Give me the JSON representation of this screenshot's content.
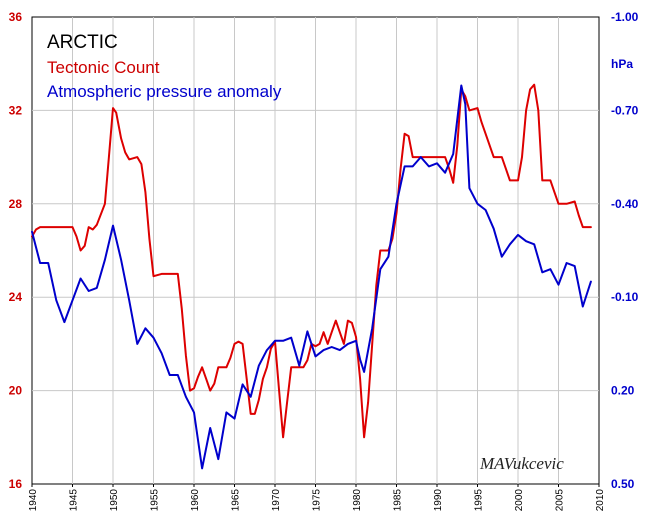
{
  "chart_data": {
    "type": "line",
    "title": "ARCTIC",
    "watermark": "MAVukcevic",
    "x_range": [
      1940,
      2010
    ],
    "x_ticks": [
      1940,
      1945,
      1950,
      1955,
      1960,
      1965,
      1970,
      1975,
      1980,
      1985,
      1990,
      1995,
      2000,
      2005,
      2010
    ],
    "y_left": {
      "range": [
        16,
        36
      ],
      "ticks": [
        "16",
        "20",
        "24",
        "28",
        "32",
        "36"
      ],
      "color": "#cc0000"
    },
    "y_right": {
      "unit": "hPa",
      "range_top": -1.0,
      "range_bottom": 0.5,
      "inverted": true,
      "ticks": [
        "-1.00",
        "-0.70",
        "-0.40",
        "-0.10",
        "0.20",
        "0.50"
      ],
      "color": "#0000cc"
    },
    "grid": true,
    "series": [
      {
        "name": "Tectonic Count",
        "axis": "left",
        "color": "#dd0000",
        "points": [
          [
            1940,
            26.6
          ],
          [
            1940.5,
            26.9
          ],
          [
            1941,
            27.0
          ],
          [
            1942,
            27.0
          ],
          [
            1943,
            27.0
          ],
          [
            1944,
            27.0
          ],
          [
            1945,
            27.0
          ],
          [
            1945.5,
            26.6
          ],
          [
            1946,
            26.0
          ],
          [
            1946.5,
            26.2
          ],
          [
            1947,
            27.0
          ],
          [
            1947.5,
            26.9
          ],
          [
            1948,
            27.1
          ],
          [
            1949,
            28.0
          ],
          [
            1949.5,
            30.0
          ],
          [
            1950,
            32.1
          ],
          [
            1950.4,
            31.9
          ],
          [
            1951,
            30.8
          ],
          [
            1951.5,
            30.2
          ],
          [
            1952,
            29.9
          ],
          [
            1953,
            30.0
          ],
          [
            1953.5,
            29.7
          ],
          [
            1954,
            28.5
          ],
          [
            1954.5,
            26.5
          ],
          [
            1955,
            24.9
          ],
          [
            1956,
            25.0
          ],
          [
            1957,
            25.0
          ],
          [
            1958,
            25.0
          ],
          [
            1958.5,
            23.5
          ],
          [
            1959,
            21.5
          ],
          [
            1959.5,
            20.0
          ],
          [
            1960,
            20.1
          ],
          [
            1960.5,
            20.6
          ],
          [
            1961,
            21.0
          ],
          [
            1961.5,
            20.5
          ],
          [
            1962,
            20.0
          ],
          [
            1962.5,
            20.3
          ],
          [
            1963,
            21.0
          ],
          [
            1964,
            21.0
          ],
          [
            1964.5,
            21.4
          ],
          [
            1965,
            22.0
          ],
          [
            1965.5,
            22.1
          ],
          [
            1966,
            22.0
          ],
          [
            1966.5,
            20.5
          ],
          [
            1967,
            19.0
          ],
          [
            1967.5,
            19.0
          ],
          [
            1968,
            19.6
          ],
          [
            1968.5,
            20.5
          ],
          [
            1969,
            21.0
          ],
          [
            1969.5,
            21.8
          ],
          [
            1970,
            22.1
          ],
          [
            1970.5,
            20.0
          ],
          [
            1971,
            18.0
          ],
          [
            1971.5,
            19.5
          ],
          [
            1972,
            21.0
          ],
          [
            1973,
            21.0
          ],
          [
            1973.5,
            21.0
          ],
          [
            1974,
            21.3
          ],
          [
            1974.5,
            22.0
          ],
          [
            1975,
            21.9
          ],
          [
            1975.5,
            22.0
          ],
          [
            1976,
            22.5
          ],
          [
            1976.5,
            22.0
          ],
          [
            1977,
            22.5
          ],
          [
            1977.5,
            23.0
          ],
          [
            1978,
            22.5
          ],
          [
            1978.5,
            22.0
          ],
          [
            1979,
            23.0
          ],
          [
            1979.5,
            22.9
          ],
          [
            1980,
            22.3
          ],
          [
            1980.5,
            20.5
          ],
          [
            1981,
            18.0
          ],
          [
            1981.5,
            19.5
          ],
          [
            1982,
            22.0
          ],
          [
            1982.5,
            24.5
          ],
          [
            1983,
            26.0
          ],
          [
            1984,
            26.0
          ],
          [
            1984.5,
            26.5
          ],
          [
            1985,
            27.6
          ],
          [
            1985.5,
            29.5
          ],
          [
            1986,
            31.0
          ],
          [
            1986.5,
            30.9
          ],
          [
            1987,
            30.0
          ],
          [
            1988,
            30.0
          ],
          [
            1989,
            30.0
          ],
          [
            1990,
            30.0
          ],
          [
            1991,
            30.0
          ],
          [
            1991.5,
            29.5
          ],
          [
            1992,
            28.9
          ],
          [
            1992.5,
            30.5
          ],
          [
            1993,
            32.9
          ],
          [
            1993.5,
            32.6
          ],
          [
            1994,
            32.0
          ],
          [
            1995,
            32.1
          ],
          [
            1995.5,
            31.5
          ],
          [
            1996,
            31.0
          ],
          [
            1997,
            30.0
          ],
          [
            1998,
            30.0
          ],
          [
            1998.5,
            29.5
          ],
          [
            1999,
            29.0
          ],
          [
            2000,
            29.0
          ],
          [
            2000.5,
            30.0
          ],
          [
            2001,
            32.0
          ],
          [
            2001.5,
            32.9
          ],
          [
            2002,
            33.1
          ],
          [
            2002.5,
            32.0
          ],
          [
            2003,
            29.0
          ],
          [
            2004,
            29.0
          ],
          [
            2004.5,
            28.5
          ],
          [
            2005,
            28.0
          ],
          [
            2006,
            28.0
          ],
          [
            2007,
            28.1
          ],
          [
            2007.5,
            27.5
          ],
          [
            2008,
            27.0
          ],
          [
            2009,
            27.0
          ]
        ]
      },
      {
        "name": "Atmospheric pressure anomaly",
        "axis": "right",
        "color": "#0000cc",
        "points": [
          [
            1940,
            -0.31
          ],
          [
            1941,
            -0.21
          ],
          [
            1942,
            -0.21
          ],
          [
            1943,
            -0.09
          ],
          [
            1944,
            -0.02
          ],
          [
            1945,
            -0.09
          ],
          [
            1946,
            -0.16
          ],
          [
            1947,
            -0.12
          ],
          [
            1948,
            -0.13
          ],
          [
            1949,
            -0.22
          ],
          [
            1950,
            -0.33
          ],
          [
            1951,
            -0.22
          ],
          [
            1952,
            -0.09
          ],
          [
            1953,
            0.05
          ],
          [
            1954,
            0.0
          ],
          [
            1955,
            0.03
          ],
          [
            1956,
            0.08
          ],
          [
            1957,
            0.15
          ],
          [
            1958,
            0.15
          ],
          [
            1959,
            0.22
          ],
          [
            1960,
            0.27
          ],
          [
            1961,
            0.45
          ],
          [
            1962,
            0.32
          ],
          [
            1963,
            0.42
          ],
          [
            1964,
            0.27
          ],
          [
            1965,
            0.29
          ],
          [
            1966,
            0.18
          ],
          [
            1967,
            0.22
          ],
          [
            1968,
            0.12
          ],
          [
            1969,
            0.07
          ],
          [
            1970,
            0.04
          ],
          [
            1971,
            0.04
          ],
          [
            1972,
            0.03
          ],
          [
            1973,
            0.12
          ],
          [
            1974,
            0.01
          ],
          [
            1975,
            0.09
          ],
          [
            1976,
            0.07
          ],
          [
            1977,
            0.06
          ],
          [
            1978,
            0.07
          ],
          [
            1979,
            0.05
          ],
          [
            1980,
            0.04
          ],
          [
            1980.5,
            0.1
          ],
          [
            1981,
            0.14
          ],
          [
            1982,
            0.0
          ],
          [
            1983,
            -0.19
          ],
          [
            1984,
            -0.23
          ],
          [
            1985,
            -0.4
          ],
          [
            1986,
            -0.52
          ],
          [
            1987,
            -0.52
          ],
          [
            1988,
            -0.55
          ],
          [
            1989,
            -0.52
          ],
          [
            1990,
            -0.53
          ],
          [
            1991,
            -0.5
          ],
          [
            1992,
            -0.56
          ],
          [
            1993,
            -0.78
          ],
          [
            1993.5,
            -0.72
          ],
          [
            1994,
            -0.45
          ],
          [
            1995,
            -0.4
          ],
          [
            1996,
            -0.38
          ],
          [
            1997,
            -0.32
          ],
          [
            1998,
            -0.23
          ],
          [
            1999,
            -0.27
          ],
          [
            2000,
            -0.3
          ],
          [
            2001,
            -0.28
          ],
          [
            2002,
            -0.27
          ],
          [
            2003,
            -0.18
          ],
          [
            2004,
            -0.19
          ],
          [
            2005,
            -0.14
          ],
          [
            2006,
            -0.21
          ],
          [
            2007,
            -0.2
          ],
          [
            2008,
            -0.07
          ],
          [
            2009,
            -0.15
          ]
        ]
      }
    ]
  }
}
